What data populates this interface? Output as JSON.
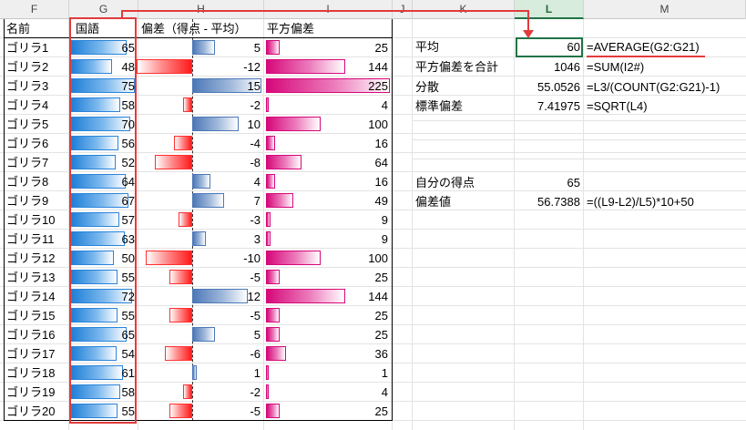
{
  "columns": [
    "F",
    "G",
    "H",
    "I",
    "J",
    "K",
    "L",
    "M"
  ],
  "table_headers": {
    "name": "名前",
    "score": "国語",
    "dev": "偏差（得点 - 平均）",
    "sq": "平方偏差"
  },
  "rows": [
    {
      "name": "ゴリラ1",
      "score": "65",
      "dev": "5",
      "sq": "25"
    },
    {
      "name": "ゴリラ2",
      "score": "48",
      "dev": "-12",
      "sq": "144"
    },
    {
      "name": "ゴリラ3",
      "score": "75",
      "dev": "15",
      "sq": "225"
    },
    {
      "name": "ゴリラ4",
      "score": "58",
      "dev": "-2",
      "sq": "4"
    },
    {
      "name": "ゴリラ5",
      "score": "70",
      "dev": "10",
      "sq": "100"
    },
    {
      "name": "ゴリラ6",
      "score": "56",
      "dev": "-4",
      "sq": "16"
    },
    {
      "name": "ゴリラ7",
      "score": "52",
      "dev": "-8",
      "sq": "64"
    },
    {
      "name": "ゴリラ8",
      "score": "64",
      "dev": "4",
      "sq": "16"
    },
    {
      "name": "ゴリラ9",
      "score": "67",
      "dev": "7",
      "sq": "49"
    },
    {
      "name": "ゴリラ10",
      "score": "57",
      "dev": "-3",
      "sq": "9"
    },
    {
      "name": "ゴリラ11",
      "score": "63",
      "dev": "3",
      "sq": "9"
    },
    {
      "name": "ゴリラ12",
      "score": "50",
      "dev": "-10",
      "sq": "100"
    },
    {
      "name": "ゴリラ13",
      "score": "55",
      "dev": "-5",
      "sq": "25"
    },
    {
      "name": "ゴリラ14",
      "score": "72",
      "dev": "12",
      "sq": "144"
    },
    {
      "name": "ゴリラ15",
      "score": "55",
      "dev": "-5",
      "sq": "25"
    },
    {
      "name": "ゴリラ16",
      "score": "65",
      "dev": "5",
      "sq": "25"
    },
    {
      "name": "ゴリラ17",
      "score": "54",
      "dev": "-6",
      "sq": "36"
    },
    {
      "name": "ゴリラ18",
      "score": "61",
      "dev": "1",
      "sq": "1"
    },
    {
      "name": "ゴリラ19",
      "score": "58",
      "dev": "-2",
      "sq": "4"
    },
    {
      "name": "ゴリラ20",
      "score": "55",
      "dev": "-5",
      "sq": "25"
    }
  ],
  "stats": [
    {
      "label": "平均",
      "value": "60",
      "formula": "=AVERAGE(G2:G21)"
    },
    {
      "label": "平方偏差を合計",
      "value": "1046",
      "formula": "=SUM(I2#)"
    },
    {
      "label": "分散",
      "value": "55.0526",
      "formula": "=L3/(COUNT(G2:G21)-1)"
    },
    {
      "label": "標準偏差",
      "value": "7.41975",
      "formula": "=SQRT(L4)"
    }
  ],
  "own_score": {
    "label": "自分の得点",
    "value": "65"
  },
  "deviation_value": {
    "label": "偏差値",
    "value": "56.7388",
    "formula": "=((L9-L2)/L5)*10+50"
  },
  "colors": {
    "highlight": "#e23b3b",
    "selected": "#217346",
    "blue_bar": "#1f7fd6",
    "neg_bar": "#ff1a1a",
    "pink_bar": "#d6087a"
  }
}
